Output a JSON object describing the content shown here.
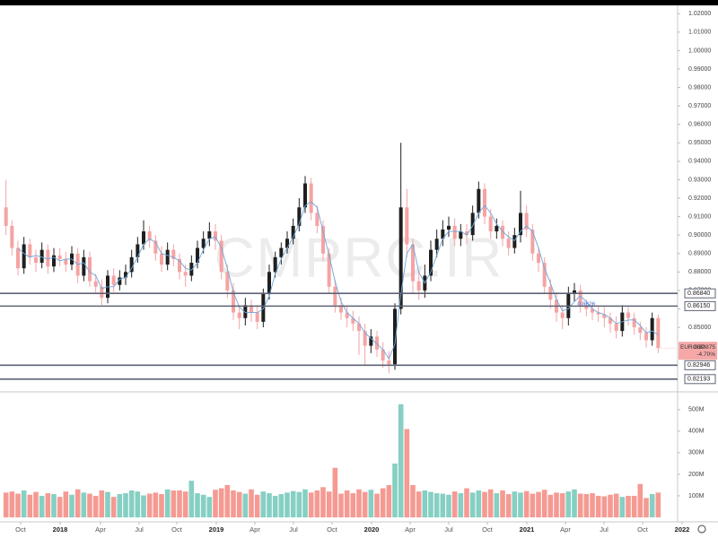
{
  "chart_data": {
    "type": "candlestick",
    "symbol": "EURGBP",
    "watermark": "CMPRC.IR",
    "categories": [
      null,
      null,
      null,
      null,
      null,
      null,
      null,
      null,
      null,
      null,
      null,
      null,
      null,
      null,
      null,
      null,
      null,
      null,
      null,
      null,
      null,
      null,
      null,
      null,
      null,
      null,
      null,
      null,
      null,
      null,
      null,
      null,
      null,
      null,
      null,
      null,
      null,
      null,
      null,
      null,
      null,
      null,
      null,
      null,
      null,
      null,
      null,
      null,
      null,
      null,
      null,
      null,
      null,
      null,
      null,
      null,
      null,
      null,
      null,
      null,
      null,
      null,
      null,
      null,
      null,
      null,
      null,
      null,
      null,
      null,
      null,
      null,
      null,
      null,
      null,
      null,
      null,
      null,
      null,
      null,
      null,
      null,
      null,
      null,
      null,
      null,
      null,
      null,
      null,
      null,
      null,
      null,
      null,
      null,
      null,
      null,
      null,
      null,
      null,
      null,
      null,
      null,
      null,
      null,
      null,
      null,
      null,
      null,
      null,
      null
    ],
    "open": [
      0.915,
      0.905,
      0.893,
      0.882,
      0.895,
      0.888,
      0.885,
      0.892,
      0.883,
      0.889,
      0.887,
      0.884,
      0.89,
      0.878,
      0.888,
      0.875,
      0.872,
      0.866,
      0.878,
      0.873,
      0.877,
      0.88,
      0.888,
      0.895,
      0.902,
      0.897,
      0.89,
      0.884,
      0.892,
      0.887,
      0.88,
      0.878,
      0.885,
      0.893,
      0.898,
      0.902,
      0.897,
      0.88,
      0.87,
      0.858,
      0.855,
      0.862,
      0.858,
      0.853,
      0.868,
      0.88,
      0.888,
      0.893,
      0.898,
      0.905,
      0.915,
      0.928,
      0.912,
      0.905,
      0.89,
      0.872,
      0.862,
      0.858,
      0.855,
      0.852,
      0.848,
      0.84,
      0.845,
      0.838,
      0.832,
      0.83,
      0.86,
      0.915,
      0.895,
      0.875,
      0.87,
      0.878,
      0.892,
      0.898,
      0.903,
      0.905,
      0.898,
      0.902,
      0.9,
      0.912,
      0.925,
      0.91,
      0.902,
      0.905,
      0.898,
      0.893,
      0.9,
      0.912,
      0.903,
      0.89,
      0.885,
      0.872,
      0.865,
      0.858,
      0.855,
      0.868,
      0.87,
      0.862,
      0.86,
      0.858,
      0.857,
      0.855,
      0.852,
      0.848,
      0.858,
      0.855,
      0.85,
      0.847,
      0.843,
      0.855
    ],
    "high": [
      0.93,
      0.908,
      0.897,
      0.899,
      0.898,
      0.892,
      0.896,
      0.895,
      0.893,
      0.893,
      0.891,
      0.894,
      0.893,
      0.892,
      0.891,
      0.879,
      0.876,
      0.881,
      0.882,
      0.881,
      0.884,
      0.892,
      0.899,
      0.908,
      0.905,
      0.9,
      0.894,
      0.896,
      0.895,
      0.89,
      0.884,
      0.889,
      0.897,
      0.902,
      0.907,
      0.906,
      0.9,
      0.884,
      0.874,
      0.862,
      0.866,
      0.865,
      0.862,
      0.871,
      0.884,
      0.891,
      0.896,
      0.902,
      0.909,
      0.92,
      0.932,
      0.931,
      0.916,
      0.908,
      0.893,
      0.876,
      0.866,
      0.862,
      0.859,
      0.856,
      0.852,
      0.849,
      0.848,
      0.842,
      0.837,
      0.863,
      0.95,
      0.925,
      0.898,
      0.881,
      0.884,
      0.897,
      0.903,
      0.908,
      0.91,
      0.909,
      0.906,
      0.906,
      0.916,
      0.929,
      0.928,
      0.914,
      0.909,
      0.908,
      0.902,
      0.904,
      0.924,
      0.916,
      0.906,
      0.893,
      0.888,
      0.876,
      0.869,
      0.862,
      0.872,
      0.874,
      0.873,
      0.865,
      0.863,
      0.862,
      0.861,
      0.858,
      0.856,
      0.862,
      0.861,
      0.858,
      0.853,
      0.85,
      0.858,
      0.857
    ],
    "low": [
      0.9,
      0.889,
      0.878,
      0.879,
      0.884,
      0.88,
      0.882,
      0.879,
      0.88,
      0.883,
      0.88,
      0.881,
      0.874,
      0.875,
      0.872,
      0.868,
      0.862,
      0.863,
      0.869,
      0.87,
      0.873,
      0.877,
      0.885,
      0.892,
      0.893,
      0.886,
      0.88,
      0.881,
      0.883,
      0.876,
      0.872,
      0.875,
      0.882,
      0.89,
      0.894,
      0.892,
      0.876,
      0.866,
      0.854,
      0.849,
      0.851,
      0.853,
      0.849,
      0.85,
      0.865,
      0.877,
      0.884,
      0.89,
      0.895,
      0.902,
      0.912,
      0.908,
      0.901,
      0.886,
      0.868,
      0.858,
      0.854,
      0.85,
      0.848,
      0.835,
      0.829,
      0.836,
      0.834,
      0.828,
      0.825,
      0.827,
      0.857,
      0.888,
      0.868,
      0.865,
      0.866,
      0.875,
      0.888,
      0.894,
      0.899,
      0.894,
      0.894,
      0.895,
      0.897,
      0.909,
      0.906,
      0.898,
      0.898,
      0.894,
      0.889,
      0.89,
      0.896,
      0.899,
      0.886,
      0.88,
      0.868,
      0.86,
      0.853,
      0.849,
      0.851,
      0.864,
      0.858,
      0.856,
      0.854,
      0.853,
      0.85,
      0.847,
      0.844,
      0.845,
      0.851,
      0.846,
      0.843,
      0.839,
      0.84,
      0.836
    ],
    "close": [
      0.905,
      0.893,
      0.882,
      0.895,
      0.888,
      0.885,
      0.892,
      0.883,
      0.889,
      0.887,
      0.884,
      0.89,
      0.878,
      0.888,
      0.875,
      0.872,
      0.866,
      0.878,
      0.873,
      0.877,
      0.88,
      0.888,
      0.895,
      0.902,
      0.897,
      0.89,
      0.884,
      0.892,
      0.887,
      0.88,
      0.878,
      0.885,
      0.893,
      0.898,
      0.902,
      0.897,
      0.88,
      0.87,
      0.858,
      0.855,
      0.862,
      0.858,
      0.853,
      0.868,
      0.88,
      0.888,
      0.893,
      0.898,
      0.905,
      0.915,
      0.928,
      0.912,
      0.905,
      0.89,
      0.872,
      0.862,
      0.858,
      0.855,
      0.852,
      0.848,
      0.84,
      0.845,
      0.838,
      0.832,
      0.83,
      0.86,
      0.915,
      0.895,
      0.875,
      0.87,
      0.878,
      0.892,
      0.898,
      0.903,
      0.905,
      0.898,
      0.902,
      0.9,
      0.912,
      0.925,
      0.91,
      0.902,
      0.905,
      0.898,
      0.893,
      0.9,
      0.912,
      0.903,
      0.89,
      0.885,
      0.872,
      0.865,
      0.858,
      0.855,
      0.868,
      0.87,
      0.862,
      0.86,
      0.858,
      0.857,
      0.855,
      0.852,
      0.848,
      0.858,
      0.855,
      0.85,
      0.847,
      0.843,
      0.855,
      0.83875
    ],
    "up_color": "#1f1f1f",
    "down_color": "#f5a3a3",
    "ma": {
      "color": "#6aa7dc",
      "values": [
        null,
        null,
        0.893,
        0.89,
        0.888,
        0.889,
        0.888,
        0.887,
        0.888,
        0.886,
        0.887,
        0.887,
        0.884,
        0.885,
        0.88,
        0.878,
        0.871,
        0.872,
        0.872,
        0.876,
        0.877,
        0.882,
        0.888,
        0.895,
        0.898,
        0.896,
        0.89,
        0.889,
        0.888,
        0.886,
        0.882,
        0.881,
        0.885,
        0.892,
        0.898,
        0.899,
        0.893,
        0.882,
        0.869,
        0.861,
        0.858,
        0.858,
        0.858,
        0.86,
        0.867,
        0.879,
        0.887,
        0.893,
        0.899,
        0.906,
        0.916,
        0.918,
        0.915,
        0.902,
        0.889,
        0.875,
        0.864,
        0.858,
        0.855,
        0.852,
        0.847,
        0.844,
        0.841,
        0.838,
        0.833,
        0.841,
        0.868,
        0.89,
        0.895,
        0.88,
        0.874,
        0.88,
        0.889,
        0.898,
        0.902,
        0.902,
        0.902,
        0.9,
        0.905,
        0.912,
        0.916,
        0.912,
        0.906,
        0.902,
        0.899,
        0.897,
        0.902,
        0.905,
        0.902,
        0.893,
        0.882,
        0.874,
        0.865,
        0.859,
        0.86,
        0.864,
        0.867,
        0.864,
        0.86,
        0.858,
        0.857,
        0.855,
        0.852,
        0.853,
        0.854,
        0.854,
        0.851,
        0.847,
        0.848,
        0.846
      ]
    },
    "xlim": [
      -1,
      119
    ],
    "xticks": [
      {
        "value": 2.45,
        "label": "Oct"
      },
      {
        "value": 9.05,
        "label": "2018"
      },
      {
        "value": 15.8,
        "label": "Apr"
      },
      {
        "value": 22.25,
        "label": "Jul"
      },
      {
        "value": 28.55,
        "label": "Oct"
      },
      {
        "value": 35.15,
        "label": "2019"
      },
      {
        "value": 41.6,
        "label": "Apr"
      },
      {
        "value": 48.05,
        "label": "Jul"
      },
      {
        "value": 54.5,
        "label": "Oct"
      },
      {
        "value": 61.1,
        "label": "2020"
      },
      {
        "value": 67.55,
        "label": "Apr"
      },
      {
        "value": 74,
        "label": "Jul"
      },
      {
        "value": 80.45,
        "label": "Oct"
      },
      {
        "value": 87.05,
        "label": "2021"
      },
      {
        "value": 93.5,
        "label": "Apr"
      },
      {
        "value": 99.95,
        "label": "Jul"
      },
      {
        "value": 106.4,
        "label": "Oct"
      },
      {
        "value": 113,
        "label": "2022"
      }
    ],
    "ylim": [
      0.816,
      1.0245
    ],
    "yticks": [
      {
        "value": 0.85,
        "label": "0.85000"
      },
      {
        "value": 0.86,
        "label": "0.86000"
      },
      {
        "value": 0.87,
        "label": "0.87000"
      },
      {
        "value": 0.88,
        "label": "0.88000"
      },
      {
        "value": 0.89,
        "label": "0.89000"
      },
      {
        "value": 0.9,
        "label": "0.90000"
      },
      {
        "value": 0.91,
        "label": "0.91000"
      },
      {
        "value": 0.92,
        "label": "0.92000"
      },
      {
        "value": 0.93,
        "label": "0.93000"
      },
      {
        "value": 0.94,
        "label": "0.94000"
      },
      {
        "value": 0.95,
        "label": "0.95000"
      },
      {
        "value": 0.96,
        "label": "0.96000"
      },
      {
        "value": 0.97,
        "label": "0.97000"
      },
      {
        "value": 0.98,
        "label": "0.98000"
      },
      {
        "value": 0.99,
        "label": "0.99000"
      },
      {
        "value": 1.0,
        "label": "1.00000"
      },
      {
        "value": 1.01,
        "label": "1.01000"
      },
      {
        "value": 1.02,
        "label": "1.02000"
      }
    ],
    "levels": [
      {
        "value": 0.8684,
        "label": "0.86840"
      },
      {
        "value": 0.8615,
        "label": "0.86150"
      },
      {
        "value": 0.82946,
        "label": "0.82946"
      },
      {
        "value": 0.82193,
        "label": "0.82193"
      }
    ],
    "level_color": "#5d6374",
    "last_price": {
      "value": 0.83875,
      "label": "0.83875"
    },
    "change": {
      "value": -4.7,
      "label": "-4.70%"
    },
    "annotation": {
      "value": 0.8626,
      "label": "0.8626"
    },
    "volume": {
      "values": [
        115,
        120,
        110,
        125,
        105,
        118,
        100,
        112,
        108,
        95,
        120,
        105,
        130,
        115,
        110,
        100,
        125,
        118,
        95,
        108,
        112,
        125,
        120,
        102,
        110,
        115,
        108,
        130,
        125,
        125,
        120,
        170,
        112,
        105,
        95,
        128,
        135,
        150,
        125,
        118,
        110,
        130,
        105,
        120,
        112,
        100,
        108,
        115,
        122,
        118,
        130,
        115,
        125,
        140,
        120,
        230,
        110,
        125,
        112,
        130,
        118,
        128,
        110,
        135,
        150,
        250,
        525,
        410,
        150,
        120,
        125,
        118,
        112,
        110,
        105,
        120,
        112,
        135,
        115,
        125,
        118,
        130,
        112,
        125,
        108,
        120,
        115,
        122,
        110,
        118,
        128,
        105,
        115,
        112,
        120,
        130,
        110,
        108,
        112,
        100,
        98,
        105,
        110,
        95,
        100,
        100,
        155,
        90,
        108,
        115
      ],
      "up_color": "#86cfc3",
      "down_color": "#f59a93",
      "ylim": [
        0,
        570
      ],
      "yticks": [
        {
          "value": 100,
          "label": "100M"
        },
        {
          "value": 200,
          "label": "200M"
        },
        {
          "value": 300,
          "label": "300M"
        },
        {
          "value": 400,
          "label": "400M"
        },
        {
          "value": 500,
          "label": "500M"
        }
      ]
    }
  }
}
